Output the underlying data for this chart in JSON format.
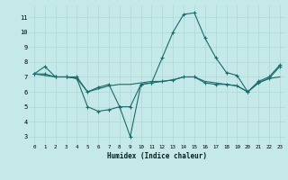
{
  "xlabel": "Humidex (Indice chaleur)",
  "x": [
    0,
    1,
    2,
    3,
    4,
    5,
    6,
    7,
    8,
    9,
    10,
    11,
    12,
    13,
    14,
    15,
    16,
    17,
    18,
    19,
    20,
    21,
    22,
    23
  ],
  "line1": [
    7.2,
    7.7,
    7.0,
    7.0,
    7.0,
    6.0,
    6.3,
    6.5,
    5.0,
    3.0,
    6.5,
    6.6,
    8.3,
    10.0,
    11.2,
    11.3,
    9.6,
    8.3,
    7.3,
    7.1,
    6.0,
    6.7,
    7.0,
    7.8
  ],
  "line2": [
    7.2,
    7.1,
    7.0,
    7.0,
    6.9,
    6.0,
    6.2,
    6.4,
    6.5,
    6.5,
    6.6,
    6.7,
    6.7,
    6.8,
    7.0,
    7.0,
    6.7,
    6.6,
    6.5,
    6.4,
    6.0,
    6.6,
    6.9,
    7.0
  ],
  "line3": [
    7.2,
    7.2,
    7.0,
    7.0,
    6.9,
    5.0,
    4.7,
    4.8,
    5.0,
    5.0,
    6.5,
    6.6,
    6.7,
    6.8,
    7.0,
    7.0,
    6.6,
    6.5,
    6.5,
    6.4,
    6.0,
    6.6,
    6.9,
    7.7
  ],
  "bg_color": "#c5e8e8",
  "line_color": "#1a6b6b",
  "grid_color": "#afd8d8",
  "ylim": [
    2.5,
    11.8
  ],
  "xlim": [
    -0.5,
    23.5
  ],
  "yticks": [
    3,
    4,
    5,
    6,
    7,
    8,
    9,
    10,
    11
  ],
  "xticks": [
    0,
    1,
    2,
    3,
    4,
    5,
    6,
    7,
    8,
    9,
    10,
    11,
    12,
    13,
    14,
    15,
    16,
    17,
    18,
    19,
    20,
    21,
    22,
    23
  ]
}
